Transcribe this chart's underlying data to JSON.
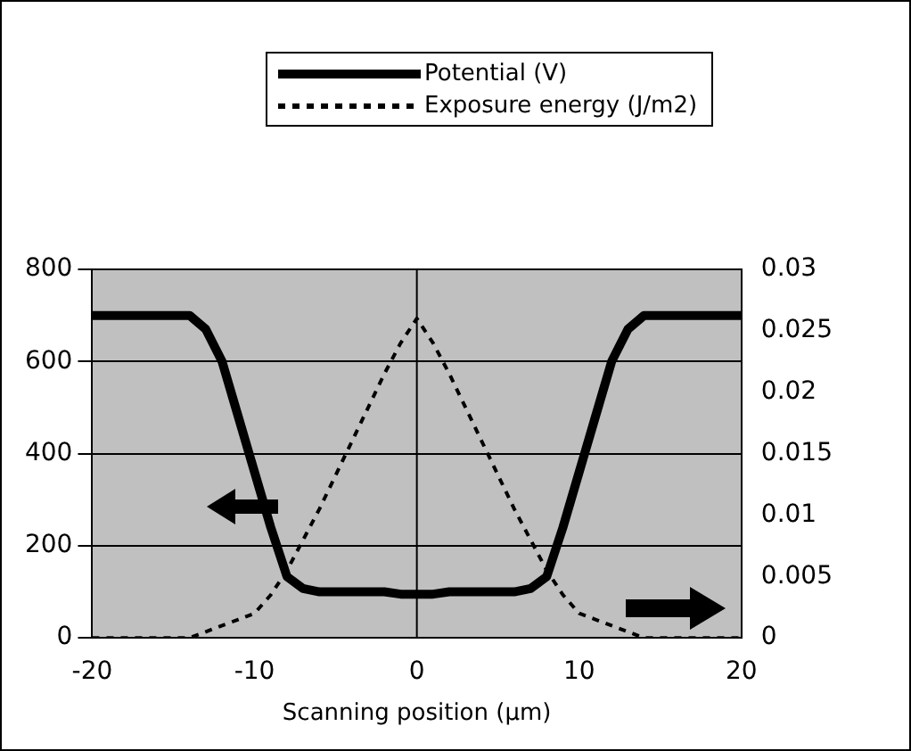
{
  "chart_data": {
    "type": "line",
    "xlabel": "Scanning position (μm)",
    "x": [
      -20,
      -15,
      -14,
      -13,
      -12,
      -11,
      -10,
      -9,
      -8,
      -7,
      -6,
      -4,
      -2,
      -1,
      0,
      1,
      2,
      4,
      6,
      7,
      8,
      9,
      10,
      11,
      12,
      13,
      14,
      15,
      20
    ],
    "series": [
      {
        "name": "Potential (V)",
        "color": "#000000",
        "line_style": "solid",
        "values": [
          700,
          700,
          700,
          670,
          600,
          480,
          360,
          240,
          133,
          107,
          100,
          100,
          100,
          95,
          95,
          95,
          100,
          100,
          100,
          107,
          133,
          240,
          360,
          480,
          600,
          670,
          700,
          700,
          700
        ]
      },
      {
        "name": "Exposure energy (J/m2)",
        "color": "#000000",
        "line_style": "dashed",
        "axis": "y2",
        "values": [
          0,
          0,
          0,
          0.0005,
          0.001,
          0.0015,
          0.002,
          0.0035,
          0.0055,
          0.008,
          0.0105,
          0.016,
          0.0215,
          0.024,
          0.026,
          0.024,
          0.0215,
          0.016,
          0.0105,
          0.008,
          0.0055,
          0.0035,
          0.002,
          0.0015,
          0.001,
          0.0005,
          0,
          0,
          0
        ]
      }
    ],
    "xlim": [
      -20,
      20
    ],
    "xticks": [
      -20,
      -10,
      0,
      10,
      20
    ],
    "ylim": [
      0,
      800
    ],
    "yticks": [
      0,
      200,
      400,
      600,
      800
    ],
    "y2lim": [
      0,
      0.03
    ],
    "y2ticks": [
      0,
      0.005,
      0.01,
      0.015,
      0.02,
      0.025,
      0.03
    ],
    "ref_lines": [
      {
        "axis": "x",
        "value": 0,
        "color": "#000000"
      }
    ],
    "grid": "y",
    "legend": "top right",
    "marker": "none"
  }
}
